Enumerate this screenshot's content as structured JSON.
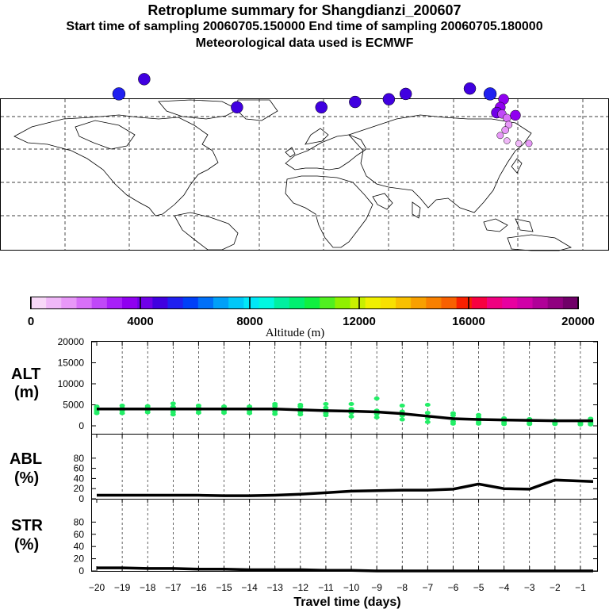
{
  "header": {
    "title": "Retroplume summary for Shangdianzi_200607",
    "line2": "Start time of sampling 20060705.150000     End time of sampling 20060705.180000",
    "line3": "Meteorological data used is ECMWF"
  },
  "colorbar": {
    "label": "Altitude (m)",
    "ticks": [
      "0",
      "4000",
      "8000",
      "12000",
      "16000",
      "20000"
    ],
    "colors": [
      "#f8d8f8",
      "#f0b8f8",
      "#e898f8",
      "#d870f8",
      "#c048f8",
      "#a820f8",
      "#9000f0",
      "#7000e8",
      "#4000e0",
      "#2020f0",
      "#0040f8",
      "#0070f8",
      "#00a0f8",
      "#00c8f8",
      "#00e8f8",
      "#00f8e0",
      "#00f0a0",
      "#00f070",
      "#10f040",
      "#50f020",
      "#90f000",
      "#c8f000",
      "#f0f000",
      "#f8e000",
      "#f8c000",
      "#f8a000",
      "#f88000",
      "#f86000",
      "#f82000",
      "#f80040",
      "#f00080",
      "#e800a0",
      "#d000a8",
      "#b00098",
      "#900080",
      "#700068"
    ]
  },
  "map": {
    "plumes": [
      {
        "lon": 118,
        "lat": 52,
        "alt": 3500
      },
      {
        "lon": 116,
        "lat": 46,
        "alt": 3500
      },
      {
        "lon": 114,
        "lat": 42,
        "alt": 4000
      },
      {
        "lon": 117,
        "lat": 41,
        "alt": 2500
      },
      {
        "lon": 120,
        "lat": 38,
        "alt": 2000
      },
      {
        "lon": 121,
        "lat": 33,
        "alt": 1500
      },
      {
        "lon": 119,
        "lat": 29,
        "alt": 1500
      },
      {
        "lon": 116,
        "lat": 25,
        "alt": 1200
      },
      {
        "lon": 120,
        "lat": 21,
        "alt": 1000
      },
      {
        "lon": 127,
        "lat": 19,
        "alt": 1000
      },
      {
        "lon": 133,
        "lat": 19,
        "alt": 1200
      },
      {
        "lon": 125,
        "lat": 40,
        "alt": 3500
      },
      {
        "lon": 110,
        "lat": 56,
        "alt": 5000
      },
      {
        "lon": 98,
        "lat": 60,
        "alt": 4500
      },
      {
        "lon": 60,
        "lat": 56,
        "alt": 4500
      },
      {
        "lon": 50,
        "lat": 52,
        "alt": 4500
      },
      {
        "lon": 30,
        "lat": 50,
        "alt": 4500
      },
      {
        "lon": 10,
        "lat": 46,
        "alt": 4500
      },
      {
        "lon": -40,
        "lat": 46,
        "alt": 4500
      },
      {
        "lon": -110,
        "lat": 56,
        "alt": 5000
      },
      {
        "lon": -95,
        "lat": 67,
        "alt": 4500
      }
    ]
  },
  "chart_data": [
    {
      "type": "scatter",
      "panel": "ALT",
      "ylabel": "ALT (m)",
      "xlabel": "Travel time (days)",
      "x_ticks": [
        "-20",
        "-19",
        "-18",
        "-17",
        "-16",
        "-15",
        "-14",
        "-13",
        "-12",
        "-11",
        "-10",
        "-9",
        "-8",
        "-7",
        "-6",
        "-5",
        "-4",
        "-3",
        "-2",
        "-1"
      ],
      "y_ticks": [
        "0",
        "5000",
        "10000",
        "15000",
        "20000"
      ],
      "ylim": [
        0,
        20000
      ],
      "xlim": [
        -20,
        -0.5
      ],
      "mean_line": {
        "x": [
          -20,
          -19,
          -18,
          -17,
          -16,
          -15,
          -14,
          -13,
          -12,
          -11,
          -10,
          -9,
          -8,
          -7,
          -6,
          -5,
          -4,
          -3,
          -2,
          -1,
          -0.5
        ],
        "y": [
          4000,
          4000,
          4000,
          4000,
          4000,
          4000,
          4000,
          4000,
          3800,
          3600,
          3500,
          3300,
          2900,
          2300,
          1700,
          1500,
          1400,
          1300,
          1200,
          1200,
          1200
        ]
      },
      "points": [
        {
          "x": -20,
          "y": [
            3000,
            3400,
            3800,
            4200,
            4600
          ]
        },
        {
          "x": -19,
          "y": [
            3000,
            3600,
            4200,
            4800
          ]
        },
        {
          "x": -18,
          "y": [
            3200,
            3700,
            4300,
            4700
          ]
        },
        {
          "x": -17,
          "y": [
            2700,
            3300,
            3900,
            4500,
            5300
          ]
        },
        {
          "x": -16,
          "y": [
            3100,
            3700,
            4300,
            4800
          ]
        },
        {
          "x": -15,
          "y": [
            3100,
            3600,
            4100,
            4600
          ]
        },
        {
          "x": -14,
          "y": [
            3000,
            3500,
            4100,
            4600
          ]
        },
        {
          "x": -13,
          "y": [
            2800,
            3400,
            4000,
            4700,
            5200
          ]
        },
        {
          "x": -12,
          "y": [
            2700,
            3300,
            3900,
            4600,
            5000
          ]
        },
        {
          "x": -11,
          "y": [
            2500,
            3000,
            3600,
            4300,
            5200
          ]
        },
        {
          "x": -10,
          "y": [
            2200,
            3100,
            4000,
            5200
          ]
        },
        {
          "x": -9,
          "y": [
            2000,
            2800,
            3600,
            6500
          ]
        },
        {
          "x": -8,
          "y": [
            1500,
            2400,
            3400,
            4800
          ]
        },
        {
          "x": -7,
          "y": [
            900,
            1800,
            3100,
            5000
          ]
        },
        {
          "x": -6,
          "y": [
            500,
            1000,
            1700,
            2500,
            3000
          ]
        },
        {
          "x": -5,
          "y": [
            500,
            900,
            1400,
            2000,
            2600
          ]
        },
        {
          "x": -4,
          "y": [
            400,
            800,
            1300,
            1800
          ]
        },
        {
          "x": -3,
          "y": [
            400,
            700,
            1100,
            1600
          ]
        },
        {
          "x": -2,
          "y": [
            400,
            600,
            900,
            1200
          ]
        },
        {
          "x": -1,
          "y": [
            300,
            600,
            900
          ]
        },
        {
          "x": -0.6,
          "y": [
            300,
            600,
            900,
            1200,
            1700
          ]
        }
      ]
    },
    {
      "type": "line",
      "panel": "ABL",
      "ylabel": "ABL (%)",
      "y_ticks": [
        "0",
        "20",
        "40",
        "60",
        "80"
      ],
      "ylim": [
        0,
        100
      ],
      "x": [
        -20,
        -19,
        -18,
        -17,
        -16,
        -15,
        -14,
        -13,
        -12,
        -11,
        -10,
        -9,
        -8,
        -7,
        -6,
        -5,
        -4,
        -3,
        -2,
        -1,
        -0.5
      ],
      "values": [
        7,
        7,
        7,
        7,
        7,
        6,
        6,
        7,
        9,
        12,
        15,
        16,
        17,
        17,
        19,
        29,
        20,
        19,
        37,
        35,
        34
      ]
    },
    {
      "type": "line",
      "panel": "STR",
      "ylabel": "STR (%)",
      "y_ticks": [
        "0",
        "20",
        "40",
        "60",
        "80"
      ],
      "ylim": [
        0,
        100
      ],
      "x": [
        -20,
        -19,
        -18,
        -17,
        -16,
        -15,
        -14,
        -13,
        -12,
        -11,
        -10,
        -9,
        -8,
        -7,
        -6,
        -5,
        -4,
        -3,
        -2,
        -1,
        -0.5
      ],
      "values": [
        5,
        5,
        4,
        4,
        3,
        3,
        2,
        2,
        2,
        1,
        1,
        0,
        0,
        0,
        0,
        0,
        0,
        0,
        0,
        0,
        0
      ]
    }
  ]
}
